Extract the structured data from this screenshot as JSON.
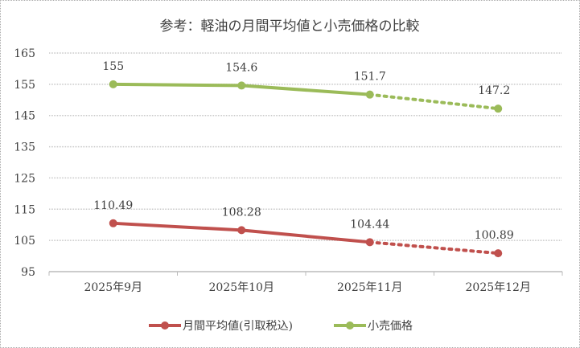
{
  "chart_data": {
    "type": "line",
    "title": "参考：軽油の月間平均値と小売価格の比較",
    "categories": [
      "2025年9月",
      "2025年10月",
      "2025年11月",
      "2025年12月"
    ],
    "ylim": [
      95,
      165
    ],
    "yticks": [
      95,
      105,
      115,
      125,
      135,
      145,
      155,
      165
    ],
    "grid": true,
    "legend_position": "bottom",
    "series": [
      {
        "name": "月間平均値(引取税込)",
        "values": [
          110.49,
          108.28,
          104.44,
          100.89
        ],
        "labels": [
          "110.49",
          "108.28",
          "104.44",
          "100.89"
        ],
        "color": "#c0504d",
        "dashed_last_segment": true
      },
      {
        "name": "小売価格",
        "values": [
          155,
          154.6,
          151.7,
          147.2
        ],
        "labels": [
          "155",
          "154.6",
          "151.7",
          "147.2"
        ],
        "color": "#9bbb59",
        "dashed_last_segment": true
      }
    ]
  }
}
